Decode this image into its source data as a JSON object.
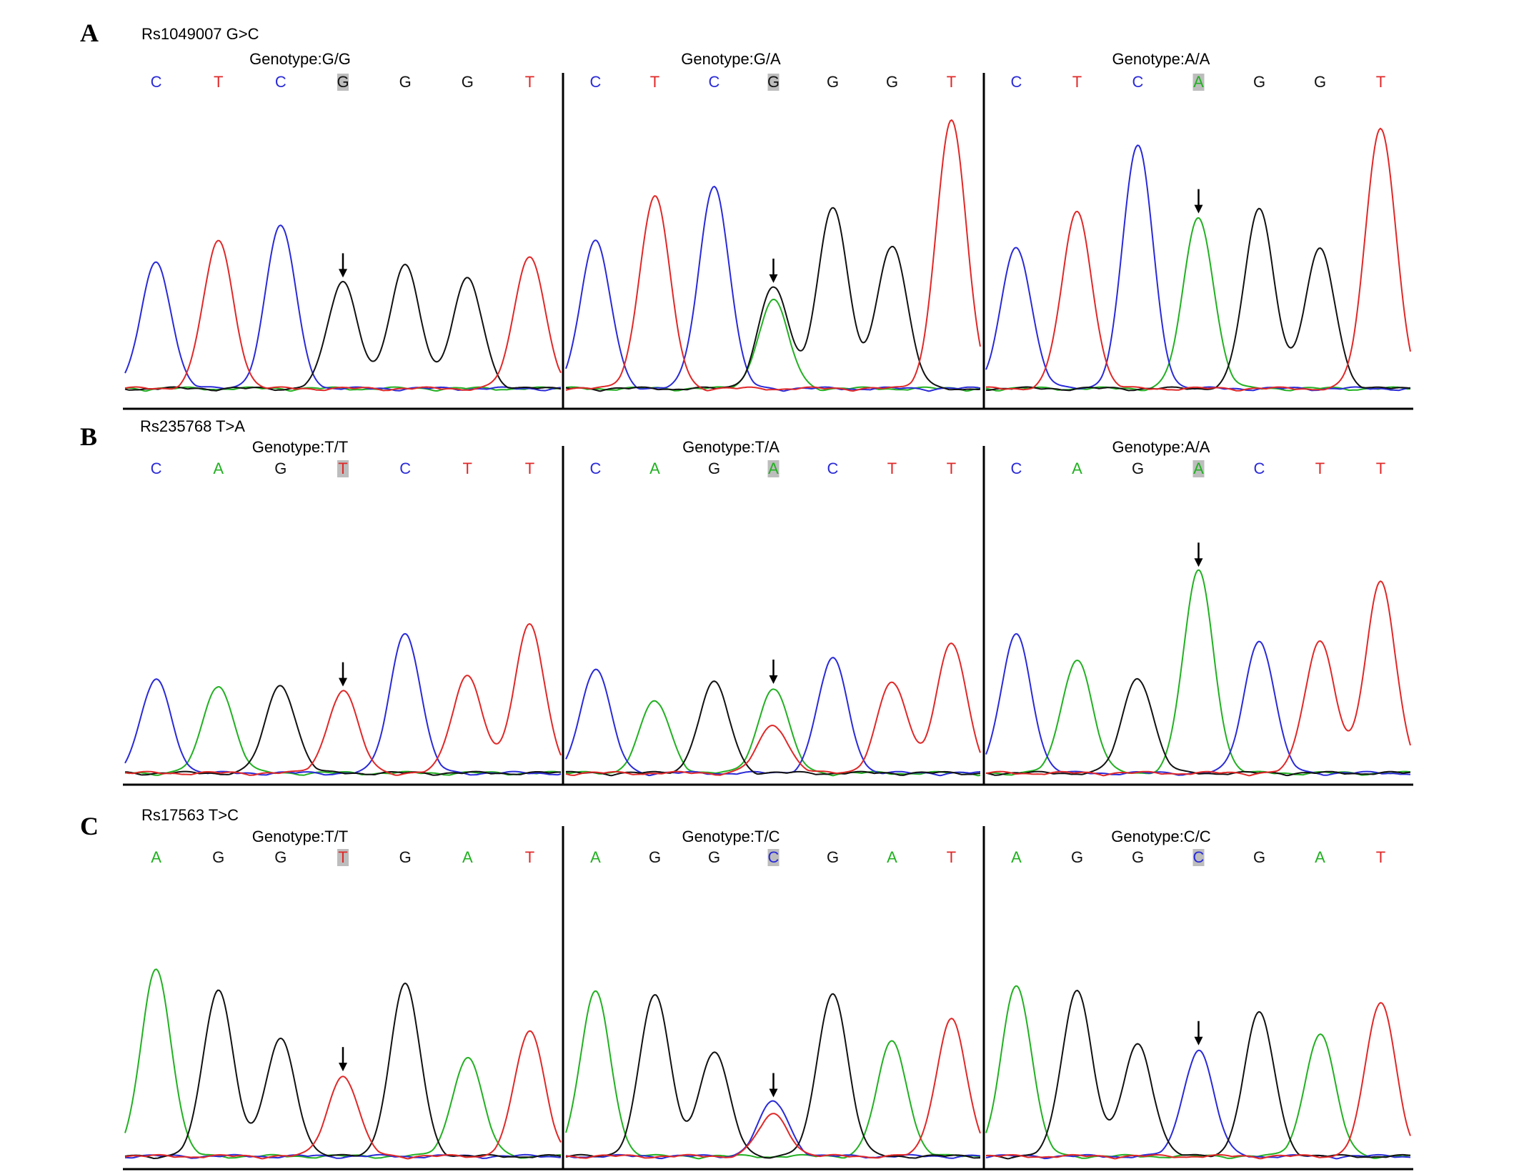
{
  "colors": {
    "A": "#22b022",
    "C": "#2a2ad8",
    "G": "#111111",
    "T": "#e02828",
    "highlight": "#bdbdbd"
  },
  "panels": [
    {
      "letter": "A",
      "snp": "Rs1049007 G>C",
      "genotypes": [
        {
          "label": "Genotype:G/G",
          "bases": [
            "C",
            "T",
            "C",
            "G",
            "G",
            "G",
            "T"
          ],
          "highlight_index": 3
        },
        {
          "label": "Genotype:G/A",
          "bases": [
            "C",
            "T",
            "C",
            "G",
            "G",
            "G",
            "T"
          ],
          "highlight_index": 3
        },
        {
          "label": "Genotype:A/A",
          "bases": [
            "C",
            "T",
            "C",
            "A",
            "G",
            "G",
            "T"
          ],
          "highlight_index": 3
        }
      ]
    },
    {
      "letter": "B",
      "snp": "Rs235768 T>A",
      "genotypes": [
        {
          "label": "Genotype:T/T",
          "bases": [
            "C",
            "A",
            "G",
            "T",
            "C",
            "T",
            "T"
          ],
          "highlight_index": 3
        },
        {
          "label": "Genotype:T/A",
          "bases": [
            "C",
            "A",
            "G",
            "A",
            "C",
            "T",
            "T"
          ],
          "highlight_index": 3
        },
        {
          "label": "Genotype:A/A",
          "bases": [
            "C",
            "A",
            "G",
            "A",
            "C",
            "T",
            "T"
          ],
          "highlight_index": 3
        }
      ]
    },
    {
      "letter": "C",
      "snp": "Rs17563 T>C",
      "genotypes": [
        {
          "label": "Genotype:T/T",
          "bases": [
            "A",
            "G",
            "G",
            "T",
            "G",
            "A",
            "T"
          ],
          "highlight_index": 3
        },
        {
          "label": "Genotype:T/C",
          "bases": [
            "A",
            "G",
            "G",
            "C",
            "G",
            "A",
            "T"
          ],
          "highlight_index": 3
        },
        {
          "label": "Genotype:C/C",
          "bases": [
            "A",
            "G",
            "G",
            "C",
            "G",
            "A",
            "T"
          ],
          "highlight_index": 3
        }
      ]
    }
  ],
  "chromatograms": [
    [
      {
        "peaks": [
          [
            "C",
            0.47
          ],
          [
            "T",
            0.55
          ],
          [
            "C",
            0.61
          ],
          [
            "G",
            0.4
          ],
          [
            "G",
            0.46
          ],
          [
            "G",
            0.41
          ],
          [
            "T",
            0.5
          ]
        ],
        "secondary": []
      },
      {
        "peaks": [
          [
            "C",
            0.55
          ],
          [
            "T",
            0.72
          ],
          [
            "C",
            0.76
          ],
          [
            "G",
            0.38
          ],
          [
            "G",
            0.68
          ],
          [
            "G",
            0.54
          ],
          [
            "T",
            1.0
          ]
        ],
        "secondary": [
          [
            "A",
            0.33,
            3
          ]
        ]
      },
      {
        "peaks": [
          [
            "C",
            0.53
          ],
          [
            "T",
            0.66
          ],
          [
            "C",
            0.91
          ],
          [
            "A",
            0.64
          ],
          [
            "G",
            0.67
          ],
          [
            "G",
            0.52
          ],
          [
            "T",
            0.98
          ]
        ],
        "secondary": []
      }
    ],
    [
      {
        "peaks": [
          [
            "C",
            0.35
          ],
          [
            "A",
            0.33
          ],
          [
            "G",
            0.33
          ],
          [
            "T",
            0.31
          ],
          [
            "C",
            0.53
          ],
          [
            "T",
            0.37
          ],
          [
            "T",
            0.56
          ]
        ],
        "secondary": []
      },
      {
        "peaks": [
          [
            "C",
            0.39
          ],
          [
            "A",
            0.27
          ],
          [
            "G",
            0.34
          ],
          [
            "A",
            0.32
          ],
          [
            "C",
            0.43
          ],
          [
            "T",
            0.34
          ],
          [
            "T",
            0.49
          ]
        ],
        "secondary": [
          [
            "T",
            0.18,
            3
          ]
        ]
      },
      {
        "peaks": [
          [
            "C",
            0.52
          ],
          [
            "A",
            0.43
          ],
          [
            "G",
            0.36
          ],
          [
            "A",
            0.76
          ],
          [
            "C",
            0.5
          ],
          [
            "T",
            0.5
          ],
          [
            "T",
            0.72
          ]
        ],
        "secondary": []
      }
    ],
    [
      {
        "peaks": [
          [
            "A",
            0.72
          ],
          [
            "G",
            0.64
          ],
          [
            "G",
            0.45
          ],
          [
            "T",
            0.31
          ],
          [
            "G",
            0.66
          ],
          [
            "A",
            0.38
          ],
          [
            "T",
            0.48
          ]
        ],
        "secondary": []
      },
      {
        "peaks": [
          [
            "A",
            0.63
          ],
          [
            "G",
            0.62
          ],
          [
            "G",
            0.4
          ],
          [
            "C",
            0.21
          ],
          [
            "G",
            0.63
          ],
          [
            "A",
            0.44
          ],
          [
            "T",
            0.53
          ]
        ],
        "secondary": [
          [
            "T",
            0.16,
            3
          ]
        ]
      },
      {
        "peaks": [
          [
            "A",
            0.66
          ],
          [
            "G",
            0.64
          ],
          [
            "G",
            0.43
          ],
          [
            "C",
            0.41
          ],
          [
            "G",
            0.55
          ],
          [
            "A",
            0.47
          ],
          [
            "T",
            0.59
          ]
        ],
        "secondary": []
      }
    ]
  ]
}
